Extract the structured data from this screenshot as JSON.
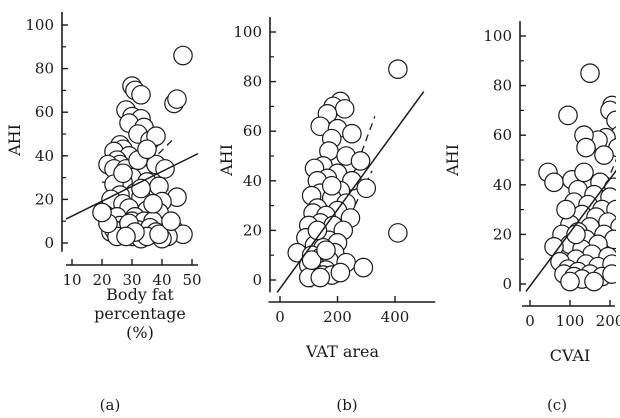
{
  "chart_data": [
    {
      "type": "scatter",
      "panel_label": "(a)",
      "xlabel_lines": [
        "Body fat",
        "percentage",
        "(%)"
      ],
      "ylabel": "AHI",
      "xticks": [
        "10",
        "20",
        "30",
        "40",
        "50"
      ],
      "yticks": [
        "0",
        "20",
        "40",
        "60",
        "80",
        "100"
      ],
      "xlim": [
        8,
        52
      ],
      "ylim": [
        -4,
        106
      ],
      "grid": false,
      "points": [
        [
          47,
          86
        ],
        [
          30,
          72
        ],
        [
          31,
          70
        ],
        [
          33,
          68
        ],
        [
          44,
          64
        ],
        [
          45,
          66
        ],
        [
          28,
          61
        ],
        [
          30,
          58
        ],
        [
          33,
          57
        ],
        [
          29,
          55
        ],
        [
          34,
          53
        ],
        [
          32,
          50
        ],
        [
          36,
          47
        ],
        [
          38,
          49
        ],
        [
          26,
          45
        ],
        [
          27,
          43
        ],
        [
          24,
          42
        ],
        [
          29,
          40
        ],
        [
          25,
          38
        ],
        [
          26,
          36
        ],
        [
          22,
          36
        ],
        [
          24,
          34
        ],
        [
          28,
          34
        ],
        [
          33,
          32
        ],
        [
          38,
          36
        ],
        [
          41,
          34
        ],
        [
          30,
          30
        ],
        [
          27,
          28
        ],
        [
          35,
          28
        ],
        [
          24,
          27
        ],
        [
          39,
          26
        ],
        [
          31,
          23
        ],
        [
          26,
          22
        ],
        [
          33,
          21
        ],
        [
          45,
          21
        ],
        [
          40,
          19
        ],
        [
          23,
          20
        ],
        [
          27,
          18
        ],
        [
          29,
          16
        ],
        [
          35,
          15
        ],
        [
          39,
          14
        ],
        [
          21,
          13
        ],
        [
          25,
          12
        ],
        [
          31,
          12
        ],
        [
          30,
          10
        ],
        [
          34,
          10
        ],
        [
          37,
          10
        ],
        [
          26,
          8
        ],
        [
          28,
          7
        ],
        [
          32,
          6
        ],
        [
          36,
          7
        ],
        [
          38,
          5
        ],
        [
          44,
          6
        ],
        [
          47,
          4
        ],
        [
          23,
          5
        ],
        [
          27,
          4
        ],
        [
          30,
          3
        ],
        [
          33,
          2
        ],
        [
          24,
          6
        ],
        [
          35,
          3
        ],
        [
          42,
          3
        ],
        [
          29,
          9
        ],
        [
          31,
          5
        ],
        [
          25,
          3
        ],
        [
          22,
          9
        ],
        [
          40,
          2
        ],
        [
          20,
          14
        ],
        [
          37,
          18
        ],
        [
          27,
          32
        ],
        [
          32,
          38
        ],
        [
          35,
          43
        ],
        [
          33,
          25
        ],
        [
          39,
          4
        ],
        [
          43,
          10
        ],
        [
          28,
          3
        ]
      ],
      "regression_line": [
        [
          8,
          11
        ],
        [
          52,
          41
        ]
      ],
      "confidence_band": {
        "lower": [
          [
            20,
            28
          ],
          [
            44,
            24
          ]
        ],
        "upper": [
          [
            36,
            37
          ],
          [
            44,
            48
          ]
        ]
      }
    },
    {
      "type": "scatter",
      "panel_label": "(b)",
      "xlabel_lines": [
        "VAT area"
      ],
      "ylabel": "AHI",
      "xticks": [
        "0",
        "200",
        "400"
      ],
      "yticks": [
        "0",
        "20",
        "40",
        "60",
        "80",
        "100"
      ],
      "xlim": [
        -40,
        540
      ],
      "ylim": [
        -5,
        106
      ],
      "grid": false,
      "points": [
        [
          410,
          85
        ],
        [
          210,
          72
        ],
        [
          185,
          70
        ],
        [
          225,
          69
        ],
        [
          165,
          67
        ],
        [
          140,
          62
        ],
        [
          200,
          61
        ],
        [
          250,
          59
        ],
        [
          180,
          57
        ],
        [
          170,
          52
        ],
        [
          230,
          50
        ],
        [
          280,
          48
        ],
        [
          150,
          46
        ],
        [
          120,
          45
        ],
        [
          200,
          43
        ],
        [
          165,
          41
        ],
        [
          250,
          40
        ],
        [
          130,
          40
        ],
        [
          300,
          37
        ],
        [
          210,
          36
        ],
        [
          140,
          35
        ],
        [
          110,
          34
        ],
        [
          180,
          33
        ],
        [
          230,
          31
        ],
        [
          130,
          29
        ],
        [
          200,
          28
        ],
        [
          115,
          27
        ],
        [
          160,
          26
        ],
        [
          245,
          25
        ],
        [
          140,
          23
        ],
        [
          185,
          22
        ],
        [
          100,
          22
        ],
        [
          220,
          20
        ],
        [
          410,
          19
        ],
        [
          130,
          18
        ],
        [
          90,
          17
        ],
        [
          170,
          16
        ],
        [
          200,
          15
        ],
        [
          120,
          14
        ],
        [
          150,
          13
        ],
        [
          60,
          11
        ],
        [
          190,
          11
        ],
        [
          110,
          10
        ],
        [
          140,
          9
        ],
        [
          170,
          8
        ],
        [
          230,
          7
        ],
        [
          290,
          5
        ],
        [
          100,
          6
        ],
        [
          130,
          5
        ],
        [
          160,
          4
        ],
        [
          120,
          3
        ],
        [
          150,
          2
        ],
        [
          180,
          2
        ],
        [
          100,
          1
        ],
        [
          210,
          3
        ],
        [
          140,
          1
        ],
        [
          110,
          8
        ],
        [
          160,
          12
        ],
        [
          130,
          20
        ],
        [
          180,
          38
        ]
      ],
      "regression_line": [
        [
          -10,
          -5
        ],
        [
          500,
          76
        ]
      ],
      "confidence_band": {
        "lower": [
          [
            150,
            4
          ],
          [
            320,
            44
          ]
        ],
        "upper": [
          [
            110,
            -3
          ],
          [
            330,
            66
          ]
        ]
      }
    },
    {
      "type": "scatter",
      "panel_label": "(c)",
      "xlabel_lines": [
        "CVAI"
      ],
      "ylabel": "AHI",
      "xticks": [
        "0",
        "100",
        "200"
      ],
      "yticks": [
        "0",
        "20",
        "40",
        "60",
        "80",
        "100"
      ],
      "xlim": [
        -20,
        240
      ],
      "ylim": [
        -3,
        106
      ],
      "grid": false,
      "points": [
        [
          150,
          85
        ],
        [
          95,
          68
        ],
        [
          205,
          72
        ],
        [
          200,
          70
        ],
        [
          215,
          66
        ],
        [
          225,
          60
        ],
        [
          190,
          59
        ],
        [
          170,
          58
        ],
        [
          135,
          60
        ],
        [
          140,
          55
        ],
        [
          220,
          55
        ],
        [
          185,
          52
        ],
        [
          45,
          45
        ],
        [
          60,
          41
        ],
        [
          105,
          42
        ],
        [
          140,
          40
        ],
        [
          175,
          41
        ],
        [
          210,
          39
        ],
        [
          120,
          38
        ],
        [
          160,
          36
        ],
        [
          200,
          35
        ],
        [
          110,
          33
        ],
        [
          145,
          32
        ],
        [
          180,
          30
        ],
        [
          215,
          30
        ],
        [
          130,
          28
        ],
        [
          165,
          27
        ],
        [
          195,
          25
        ],
        [
          100,
          24
        ],
        [
          150,
          23
        ],
        [
          225,
          23
        ],
        [
          120,
          21
        ],
        [
          185,
          20
        ],
        [
          80,
          20
        ],
        [
          140,
          18
        ],
        [
          210,
          18
        ],
        [
          170,
          16
        ],
        [
          100,
          16
        ],
        [
          60,
          15
        ],
        [
          130,
          14
        ],
        [
          155,
          12
        ],
        [
          195,
          11
        ],
        [
          115,
          10
        ],
        [
          75,
          9
        ],
        [
          140,
          8
        ],
        [
          170,
          7
        ],
        [
          205,
          8
        ],
        [
          95,
          6
        ],
        [
          120,
          5
        ],
        [
          150,
          4
        ],
        [
          85,
          4
        ],
        [
          110,
          3
        ],
        [
          180,
          3
        ],
        [
          130,
          2
        ],
        [
          100,
          1
        ],
        [
          160,
          1
        ],
        [
          205,
          4
        ],
        [
          115,
          20
        ],
        [
          135,
          45
        ],
        [
          90,
          30
        ]
      ],
      "regression_line": [
        [
          -10,
          -3
        ],
        [
          240,
          51
        ]
      ],
      "confidence_band": {
        "lower": [
          [
            80,
            18
          ],
          [
            240,
            33
          ]
        ],
        "upper": [
          [
            90,
            0
          ],
          [
            230,
            56
          ]
        ]
      }
    }
  ]
}
